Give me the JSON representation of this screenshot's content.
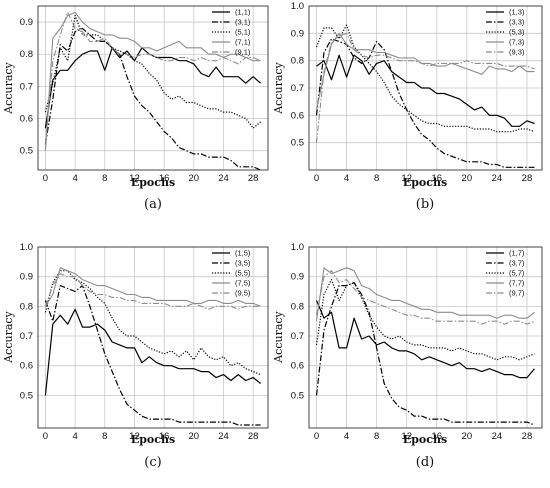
{
  "chart_data": [
    {
      "type": "line",
      "panel_label": "(a)",
      "xlabel": "Epochs",
      "ylabel": "Accuracy",
      "xticks": [
        0,
        4,
        8,
        12,
        16,
        20,
        24,
        28
      ],
      "yticks": [
        0.5,
        0.6,
        0.7,
        0.8,
        0.9
      ],
      "xlim": [
        -1,
        30
      ],
      "ylim": [
        0.44,
        0.95
      ],
      "grid": true,
      "legend": "top-right",
      "x": [
        0,
        1,
        2,
        3,
        4,
        5,
        6,
        7,
        8,
        9,
        10,
        11,
        12,
        13,
        14,
        15,
        16,
        17,
        18,
        19,
        20,
        21,
        22,
        23,
        24,
        25,
        26,
        27,
        28,
        29
      ],
      "series": [
        {
          "name": "(1,1)",
          "style": "solid",
          "color": "#000000",
          "values": [
            0.57,
            0.72,
            0.75,
            0.75,
            0.78,
            0.8,
            0.81,
            0.81,
            0.75,
            0.82,
            0.79,
            0.81,
            0.78,
            0.82,
            0.8,
            0.79,
            0.79,
            0.79,
            0.78,
            0.78,
            0.77,
            0.74,
            0.73,
            0.76,
            0.73,
            0.73,
            0.73,
            0.71,
            0.73,
            0.71
          ]
        },
        {
          "name": "(3,1)",
          "style": "dashdot",
          "color": "#000000",
          "values": [
            0.52,
            0.66,
            0.83,
            0.81,
            0.87,
            0.88,
            0.86,
            0.84,
            0.84,
            0.82,
            0.8,
            0.73,
            0.67,
            0.64,
            0.62,
            0.59,
            0.56,
            0.54,
            0.51,
            0.5,
            0.49,
            0.49,
            0.48,
            0.48,
            0.48,
            0.47,
            0.45,
            0.45,
            0.45,
            0.44
          ]
        },
        {
          "name": "(5,1)",
          "style": "dotted",
          "color": "#000000",
          "values": [
            0.62,
            0.71,
            0.82,
            0.78,
            0.92,
            0.86,
            0.86,
            0.86,
            0.84,
            0.82,
            0.81,
            0.8,
            0.78,
            0.77,
            0.74,
            0.72,
            0.68,
            0.66,
            0.67,
            0.65,
            0.65,
            0.64,
            0.63,
            0.63,
            0.62,
            0.62,
            0.61,
            0.6,
            0.57,
            0.59
          ]
        },
        {
          "name": "(7,1)",
          "style": "solid",
          "color": "#8c8c8c",
          "values": [
            0.5,
            0.85,
            0.88,
            0.92,
            0.93,
            0.9,
            0.88,
            0.87,
            0.86,
            0.86,
            0.85,
            0.85,
            0.84,
            0.82,
            0.82,
            0.81,
            0.82,
            0.83,
            0.84,
            0.82,
            0.82,
            0.82,
            0.8,
            0.8,
            0.79,
            0.8,
            0.8,
            0.79,
            0.78,
            0.78
          ]
        },
        {
          "name": "(9,1)",
          "style": "dashdot",
          "color": "#8c8c8c",
          "values": [
            0.51,
            0.78,
            0.86,
            0.93,
            0.88,
            0.87,
            0.84,
            0.84,
            0.85,
            0.82,
            0.8,
            0.8,
            0.79,
            0.8,
            0.8,
            0.79,
            0.78,
            0.78,
            0.79,
            0.79,
            0.78,
            0.79,
            0.78,
            0.78,
            0.79,
            0.78,
            0.77,
            0.79,
            0.79,
            0.78
          ]
        }
      ]
    },
    {
      "type": "line",
      "panel_label": "(b)",
      "xlabel": "Epochs",
      "ylabel": "Accuracy",
      "xticks": [
        0,
        4,
        8,
        12,
        16,
        20,
        24,
        28
      ],
      "yticks": [
        0.5,
        0.6,
        0.7,
        0.8,
        0.9,
        1.0
      ],
      "xlim": [
        -1,
        30
      ],
      "ylim": [
        0.4,
        1.0
      ],
      "grid": true,
      "legend": "top-right",
      "x": [
        0,
        1,
        2,
        3,
        4,
        5,
        6,
        7,
        8,
        9,
        10,
        11,
        12,
        13,
        14,
        15,
        16,
        17,
        18,
        19,
        20,
        21,
        22,
        23,
        24,
        25,
        26,
        27,
        28,
        29
      ],
      "series": [
        {
          "name": "(1,3)",
          "style": "solid",
          "color": "#000000",
          "values": [
            0.78,
            0.8,
            0.73,
            0.82,
            0.74,
            0.82,
            0.8,
            0.75,
            0.79,
            0.8,
            0.76,
            0.74,
            0.72,
            0.72,
            0.7,
            0.7,
            0.68,
            0.68,
            0.67,
            0.66,
            0.64,
            0.62,
            0.63,
            0.6,
            0.6,
            0.59,
            0.56,
            0.56,
            0.58,
            0.57
          ]
        },
        {
          "name": "(3,3)",
          "style": "dashdot",
          "color": "#000000",
          "values": [
            0.6,
            0.83,
            0.88,
            0.87,
            0.86,
            0.81,
            0.79,
            0.81,
            0.87,
            0.84,
            0.76,
            0.68,
            0.62,
            0.57,
            0.53,
            0.51,
            0.48,
            0.46,
            0.45,
            0.44,
            0.43,
            0.43,
            0.43,
            0.42,
            0.42,
            0.41,
            0.41,
            0.41,
            0.41,
            0.41
          ]
        },
        {
          "name": "(5,3)",
          "style": "dotted",
          "color": "#000000",
          "values": [
            0.85,
            0.92,
            0.92,
            0.88,
            0.93,
            0.85,
            0.82,
            0.79,
            0.76,
            0.72,
            0.67,
            0.64,
            0.62,
            0.6,
            0.58,
            0.57,
            0.57,
            0.56,
            0.56,
            0.56,
            0.56,
            0.55,
            0.55,
            0.55,
            0.54,
            0.54,
            0.54,
            0.55,
            0.55,
            0.54
          ]
        },
        {
          "name": "(7,3)",
          "style": "solid",
          "color": "#8c8c8c",
          "values": [
            0.62,
            0.75,
            0.86,
            0.9,
            0.86,
            0.84,
            0.84,
            0.84,
            0.83,
            0.83,
            0.82,
            0.81,
            0.81,
            0.81,
            0.79,
            0.79,
            0.78,
            0.78,
            0.79,
            0.78,
            0.77,
            0.76,
            0.75,
            0.78,
            0.77,
            0.77,
            0.76,
            0.78,
            0.76,
            0.76
          ]
        },
        {
          "name": "(9,3)",
          "style": "dashdot",
          "color": "#8c8c8c",
          "values": [
            0.5,
            0.76,
            0.87,
            0.89,
            0.9,
            0.84,
            0.82,
            0.81,
            0.82,
            0.82,
            0.81,
            0.8,
            0.8,
            0.8,
            0.79,
            0.78,
            0.79,
            0.79,
            0.79,
            0.79,
            0.8,
            0.79,
            0.79,
            0.79,
            0.79,
            0.78,
            0.78,
            0.78,
            0.78,
            0.77
          ]
        }
      ]
    },
    {
      "type": "line",
      "panel_label": "(c)",
      "xlabel": "Epochs",
      "ylabel": "Accuracy",
      "xticks": [
        0,
        4,
        8,
        12,
        16,
        20,
        24,
        28
      ],
      "yticks": [
        0.5,
        0.6,
        0.7,
        0.8,
        0.9,
        1.0
      ],
      "xlim": [
        -1,
        30
      ],
      "ylim": [
        0.39,
        1.0
      ],
      "grid": true,
      "legend": "top-right",
      "x": [
        0,
        1,
        2,
        3,
        4,
        5,
        6,
        7,
        8,
        9,
        10,
        11,
        12,
        13,
        14,
        15,
        16,
        17,
        18,
        19,
        20,
        21,
        22,
        23,
        24,
        25,
        26,
        27,
        28,
        29
      ],
      "series": [
        {
          "name": "(1,5)",
          "style": "solid",
          "color": "#000000",
          "values": [
            0.5,
            0.74,
            0.77,
            0.74,
            0.79,
            0.73,
            0.73,
            0.74,
            0.72,
            0.68,
            0.67,
            0.66,
            0.66,
            0.61,
            0.63,
            0.61,
            0.6,
            0.6,
            0.59,
            0.59,
            0.59,
            0.58,
            0.58,
            0.56,
            0.57,
            0.55,
            0.57,
            0.55,
            0.56,
            0.54
          ]
        },
        {
          "name": "(3,5)",
          "style": "dashdot",
          "color": "#000000",
          "values": [
            0.82,
            0.75,
            0.87,
            0.86,
            0.85,
            0.87,
            0.8,
            0.72,
            0.64,
            0.58,
            0.52,
            0.47,
            0.45,
            0.43,
            0.42,
            0.42,
            0.42,
            0.42,
            0.41,
            0.41,
            0.41,
            0.41,
            0.41,
            0.41,
            0.41,
            0.41,
            0.4,
            0.4,
            0.4,
            0.4
          ]
        },
        {
          "name": "(5,5)",
          "style": "dotted",
          "color": "#000000",
          "values": [
            0.78,
            0.88,
            0.92,
            0.92,
            0.89,
            0.88,
            0.86,
            0.83,
            0.81,
            0.76,
            0.72,
            0.7,
            0.7,
            0.68,
            0.66,
            0.65,
            0.64,
            0.65,
            0.63,
            0.65,
            0.62,
            0.66,
            0.63,
            0.62,
            0.63,
            0.6,
            0.61,
            0.59,
            0.58,
            0.57
          ]
        },
        {
          "name": "(7,5)",
          "style": "solid",
          "color": "#8c8c8c",
          "values": [
            0.8,
            0.84,
            0.93,
            0.92,
            0.91,
            0.89,
            0.88,
            0.87,
            0.87,
            0.86,
            0.85,
            0.84,
            0.84,
            0.83,
            0.83,
            0.82,
            0.82,
            0.82,
            0.82,
            0.82,
            0.81,
            0.81,
            0.82,
            0.82,
            0.81,
            0.81,
            0.82,
            0.81,
            0.81,
            0.8
          ]
        },
        {
          "name": "(9,5)",
          "style": "dashdot",
          "color": "#8c8c8c",
          "values": [
            0.8,
            0.87,
            0.91,
            0.9,
            0.9,
            0.87,
            0.85,
            0.84,
            0.84,
            0.83,
            0.83,
            0.82,
            0.82,
            0.81,
            0.81,
            0.81,
            0.81,
            0.8,
            0.8,
            0.8,
            0.81,
            0.8,
            0.79,
            0.8,
            0.8,
            0.8,
            0.79,
            0.8,
            0.8,
            0.8
          ]
        }
      ]
    },
    {
      "type": "line",
      "panel_label": "(d)",
      "xlabel": "Epochs",
      "ylabel": "Accuracy",
      "xticks": [
        0,
        4,
        8,
        12,
        16,
        20,
        24,
        28
      ],
      "yticks": [
        0.5,
        0.6,
        0.7,
        0.8,
        0.9,
        1.0
      ],
      "xlim": [
        -1,
        30
      ],
      "ylim": [
        0.39,
        1.0
      ],
      "grid": true,
      "legend": "top-right",
      "x": [
        0,
        1,
        2,
        3,
        4,
        5,
        6,
        7,
        8,
        9,
        10,
        11,
        12,
        13,
        14,
        15,
        16,
        17,
        18,
        19,
        20,
        21,
        22,
        23,
        24,
        25,
        26,
        27,
        28,
        29
      ],
      "series": [
        {
          "name": "(1,7)",
          "style": "solid",
          "color": "#000000",
          "values": [
            0.82,
            0.76,
            0.78,
            0.66,
            0.66,
            0.76,
            0.69,
            0.7,
            0.67,
            0.68,
            0.66,
            0.65,
            0.65,
            0.64,
            0.62,
            0.63,
            0.62,
            0.61,
            0.6,
            0.61,
            0.59,
            0.59,
            0.58,
            0.59,
            0.58,
            0.57,
            0.57,
            0.56,
            0.56,
            0.59
          ]
        },
        {
          "name": "(3,7)",
          "style": "dashdot",
          "color": "#000000",
          "values": [
            0.5,
            0.72,
            0.8,
            0.87,
            0.87,
            0.88,
            0.84,
            0.78,
            0.66,
            0.54,
            0.49,
            0.46,
            0.45,
            0.43,
            0.43,
            0.42,
            0.42,
            0.42,
            0.41,
            0.41,
            0.41,
            0.41,
            0.41,
            0.41,
            0.41,
            0.41,
            0.41,
            0.41,
            0.41,
            0.4
          ]
        },
        {
          "name": "(5,7)",
          "style": "dotted",
          "color": "#000000",
          "values": [
            0.67,
            0.84,
            0.89,
            0.82,
            0.87,
            0.88,
            0.83,
            0.77,
            0.73,
            0.7,
            0.69,
            0.7,
            0.68,
            0.67,
            0.67,
            0.66,
            0.66,
            0.66,
            0.65,
            0.66,
            0.65,
            0.64,
            0.64,
            0.63,
            0.62,
            0.63,
            0.63,
            0.62,
            0.63,
            0.64
          ]
        },
        {
          "name": "(7,7)",
          "style": "solid",
          "color": "#8c8c8c",
          "values": [
            0.75,
            0.93,
            0.91,
            0.92,
            0.93,
            0.92,
            0.87,
            0.86,
            0.84,
            0.83,
            0.82,
            0.82,
            0.81,
            0.8,
            0.79,
            0.79,
            0.78,
            0.78,
            0.78,
            0.77,
            0.77,
            0.77,
            0.77,
            0.77,
            0.76,
            0.77,
            0.77,
            0.76,
            0.76,
            0.78
          ]
        },
        {
          "name": "(9,7)",
          "style": "dashdot",
          "color": "#8c8c8c",
          "values": [
            0.77,
            0.9,
            0.92,
            0.88,
            0.89,
            0.86,
            0.83,
            0.82,
            0.81,
            0.8,
            0.79,
            0.78,
            0.77,
            0.77,
            0.76,
            0.76,
            0.75,
            0.75,
            0.75,
            0.75,
            0.75,
            0.75,
            0.74,
            0.75,
            0.75,
            0.74,
            0.75,
            0.75,
            0.74,
            0.75
          ]
        }
      ]
    }
  ]
}
